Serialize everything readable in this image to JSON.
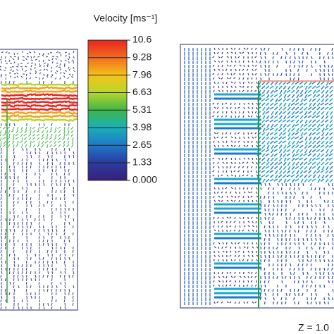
{
  "colorbar": {
    "title": "Velocity [ms⁻¹]",
    "ticks": [
      10.6,
      9.28,
      7.96,
      6.63,
      5.31,
      3.98,
      2.65,
      1.33,
      {
        "value": 0,
        "label": "0.000"
      }
    ],
    "range": [
      0,
      10.6
    ]
  },
  "annotation": "Z = 1.0"
}
